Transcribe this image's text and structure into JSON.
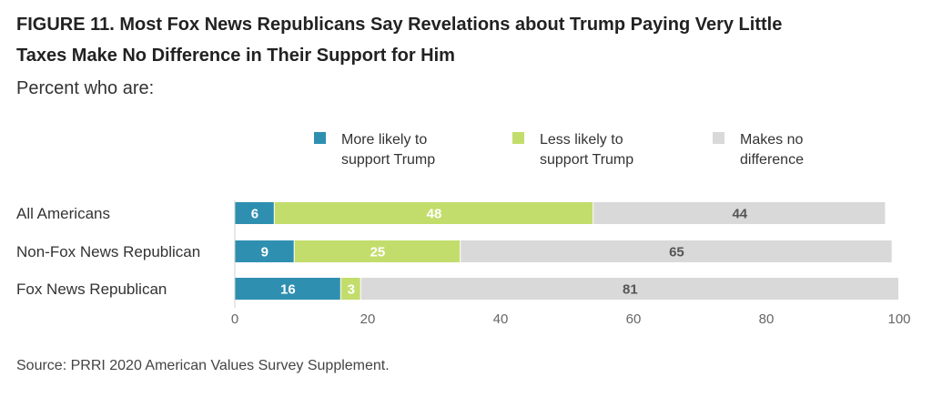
{
  "figure": {
    "title_line1": "FIGURE 11. Most Fox News Republicans Say Revelations about Trump Paying Very Little",
    "title_line2": "Taxes Make No Difference in Their Support for Him",
    "subtitle": "Percent who are:",
    "source": "Source: PRRI 2020 American Values Survey Supplement."
  },
  "chart_data": {
    "type": "bar",
    "orientation": "horizontal",
    "stacked": true,
    "categories": [
      "All Americans",
      "Non-Fox News Republican",
      "Fox News Republican"
    ],
    "series": [
      {
        "name_lines": [
          "More likely to",
          "support Trump"
        ],
        "color": "#2f8fb1",
        "label_color": "#ffffff",
        "values": [
          6,
          9,
          16
        ]
      },
      {
        "name_lines": [
          "Less likely to",
          "support Trump"
        ],
        "color": "#c3dd6c",
        "label_color": "#ffffff",
        "values": [
          48,
          25,
          3
        ]
      },
      {
        "name_lines": [
          "Makes no",
          "difference"
        ],
        "color": "#d9d9da",
        "label_color": "#555555",
        "values": [
          44,
          65,
          81
        ]
      }
    ],
    "xticks": [
      0,
      20,
      40,
      60,
      80,
      100
    ],
    "xlim": [
      0,
      100
    ],
    "grid": false,
    "legend_position": "top"
  }
}
